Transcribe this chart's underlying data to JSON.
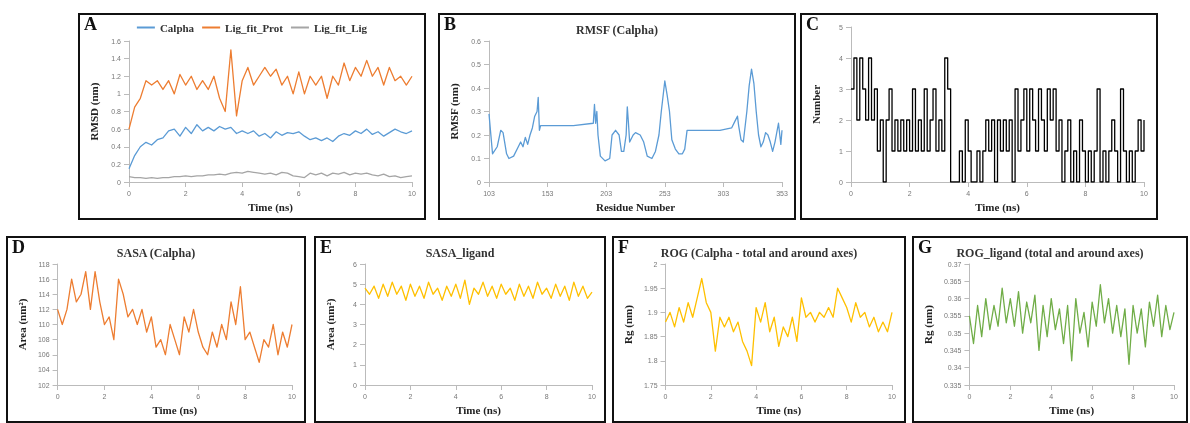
{
  "chart_data": [
    {
      "type": "line",
      "annotations": [
        "A"
      ],
      "xlabel": "Time (ns)",
      "ylabel": "RMSD (nm)",
      "xlim": [
        0,
        10
      ],
      "xticks": [
        0,
        2,
        4,
        6,
        8,
        10
      ],
      "ylim": [
        0,
        1.6
      ],
      "yticks": [
        0,
        0.2,
        0.4,
        0.6,
        0.8,
        1,
        1.2,
        1.4,
        1.6
      ],
      "grid": false,
      "legend": "top",
      "marker": "none",
      "x": [
        0,
        0.2,
        0.4,
        0.6,
        0.8,
        1,
        1.2,
        1.4,
        1.6,
        1.8,
        2,
        2.2,
        2.4,
        2.6,
        2.8,
        3,
        3.2,
        3.4,
        3.6,
        3.8,
        4,
        4.2,
        4.4,
        4.6,
        4.8,
        5,
        5.2,
        5.4,
        5.6,
        5.8,
        6,
        6.2,
        6.4,
        6.6,
        6.8,
        7,
        7.2,
        7.4,
        7.6,
        7.8,
        8,
        8.2,
        8.4,
        8.6,
        8.8,
        9,
        9.2,
        9.4,
        9.6,
        9.8,
        10
      ],
      "series": [
        {
          "name": "Calpha",
          "color": "#5b9bd5",
          "values": [
            0.15,
            0.3,
            0.4,
            0.45,
            0.42,
            0.48,
            0.5,
            0.58,
            0.6,
            0.52,
            0.62,
            0.55,
            0.65,
            0.58,
            0.62,
            0.58,
            0.63,
            0.6,
            0.62,
            0.55,
            0.58,
            0.55,
            0.58,
            0.52,
            0.55,
            0.5,
            0.57,
            0.53,
            0.56,
            0.55,
            0.57,
            0.52,
            0.48,
            0.5,
            0.47,
            0.5,
            0.46,
            0.52,
            0.55,
            0.53,
            0.58,
            0.55,
            0.6,
            0.54,
            0.57,
            0.52,
            0.56,
            0.6,
            0.57,
            0.55,
            0.58
          ]
        },
        {
          "name": "Lig_fit_Prot",
          "color": "#ed7d31",
          "values": [
            0.6,
            0.85,
            0.95,
            1.15,
            1.1,
            1.15,
            1.05,
            1.15,
            1.0,
            1.22,
            1.1,
            1.2,
            1.05,
            1.15,
            1.05,
            1.2,
            0.95,
            0.8,
            1.5,
            0.75,
            1.15,
            1.3,
            1.1,
            1.2,
            1.3,
            1.2,
            1.28,
            1.1,
            1.2,
            1.0,
            1.25,
            1.0,
            1.2,
            1.1,
            1.2,
            0.95,
            1.2,
            1.1,
            1.35,
            1.15,
            1.3,
            1.2,
            1.38,
            1.2,
            1.3,
            1.1,
            1.3,
            1.15,
            1.2,
            1.1,
            1.2
          ]
        },
        {
          "name": "Lig_fit_Lig",
          "color": "#a5a5a5",
          "values": [
            0.06,
            0.05,
            0.05,
            0.04,
            0.05,
            0.04,
            0.05,
            0.05,
            0.06,
            0.06,
            0.07,
            0.06,
            0.07,
            0.07,
            0.08,
            0.08,
            0.09,
            0.08,
            0.1,
            0.11,
            0.1,
            0.12,
            0.11,
            0.1,
            0.09,
            0.1,
            0.08,
            0.11,
            0.1,
            0.07,
            0.06,
            0.05,
            0.1,
            0.08,
            0.1,
            0.07,
            0.1,
            0.09,
            0.11,
            0.08,
            0.1,
            0.09,
            0.1,
            0.08,
            0.07,
            0.09,
            0.06,
            0.07,
            0.05,
            0.06,
            0.07
          ]
        }
      ]
    },
    {
      "type": "line",
      "title": "RMSF (Calpha)",
      "annotations": [
        "B"
      ],
      "xlabel": "Residue Number",
      "ylabel": "RMSF (nm)",
      "xlim": [
        103,
        353
      ],
      "xticks": [
        103,
        153,
        203,
        253,
        303,
        353
      ],
      "ylim": [
        0,
        0.6
      ],
      "yticks": [
        0,
        0.1,
        0.2,
        0.3,
        0.4,
        0.5,
        0.6
      ],
      "grid": false,
      "marker": "none",
      "color": "#5b9bd5",
      "x": [
        103,
        106,
        110,
        113,
        115,
        118,
        120,
        124,
        128,
        130,
        132,
        134,
        136,
        138,
        140,
        142,
        144,
        145,
        146,
        147,
        175,
        192,
        193,
        194,
        195,
        196,
        198,
        202,
        206,
        208,
        211,
        214,
        216,
        218,
        220,
        221,
        222,
        223,
        226,
        228,
        232,
        235,
        238,
        242,
        245,
        248,
        250,
        253,
        255,
        257,
        259,
        262,
        265,
        268,
        270,
        272,
        300,
        310,
        313,
        315,
        316,
        318,
        320,
        323,
        325,
        327,
        329,
        331,
        333,
        335,
        337,
        339,
        341,
        343,
        345,
        347,
        350,
        352,
        353
      ],
      "values": [
        0.29,
        0.12,
        0.15,
        0.22,
        0.21,
        0.12,
        0.1,
        0.11,
        0.15,
        0.17,
        0.15,
        0.19,
        0.16,
        0.2,
        0.23,
        0.28,
        0.3,
        0.36,
        0.22,
        0.24,
        0.24,
        0.25,
        0.33,
        0.25,
        0.3,
        0.2,
        0.11,
        0.09,
        0.1,
        0.2,
        0.22,
        0.2,
        0.13,
        0.13,
        0.2,
        0.32,
        0.25,
        0.17,
        0.2,
        0.21,
        0.2,
        0.17,
        0.11,
        0.1,
        0.13,
        0.2,
        0.3,
        0.43,
        0.37,
        0.3,
        0.18,
        0.14,
        0.12,
        0.12,
        0.14,
        0.22,
        0.22,
        0.23,
        0.26,
        0.28,
        0.24,
        0.18,
        0.17,
        0.3,
        0.41,
        0.48,
        0.42,
        0.3,
        0.2,
        0.15,
        0.17,
        0.21,
        0.2,
        0.17,
        0.13,
        0.17,
        0.25,
        0.16,
        0.22
      ]
    },
    {
      "type": "step",
      "annotations": [
        "C"
      ],
      "xlabel": "Time (ns)",
      "ylabel": "Number",
      "xlim": [
        0,
        10
      ],
      "xticks": [
        0,
        2,
        4,
        6,
        8,
        10
      ],
      "ylim": [
        0,
        5
      ],
      "yticks": [
        0,
        1,
        2,
        3,
        4,
        5
      ],
      "grid": false,
      "marker": "none",
      "color": "#000000",
      "x": [
        0,
        0.1,
        0.2,
        0.3,
        0.4,
        0.5,
        0.6,
        0.7,
        0.8,
        0.9,
        1,
        1.1,
        1.2,
        1.3,
        1.4,
        1.5,
        1.6,
        1.7,
        1.8,
        1.9,
        2,
        2.1,
        2.2,
        2.3,
        2.4,
        2.5,
        2.6,
        2.7,
        2.8,
        2.9,
        3,
        3.1,
        3.2,
        3.3,
        3.4,
        3.5,
        3.6,
        3.7,
        3.8,
        3.9,
        4,
        4.1,
        4.2,
        4.3,
        4.4,
        4.5,
        4.6,
        4.7,
        4.8,
        4.9,
        5,
        5.1,
        5.2,
        5.3,
        5.4,
        5.5,
        5.6,
        5.7,
        5.8,
        5.9,
        6,
        6.1,
        6.2,
        6.3,
        6.4,
        6.5,
        6.6,
        6.7,
        6.8,
        6.9,
        7,
        7.1,
        7.2,
        7.3,
        7.4,
        7.5,
        7.6,
        7.7,
        7.8,
        7.9,
        8,
        8.1,
        8.2,
        8.3,
        8.4,
        8.5,
        8.6,
        8.7,
        8.8,
        8.9,
        9,
        9.1,
        9.2,
        9.3,
        9.4,
        9.5,
        9.6,
        9.7,
        9.8,
        9.9,
        10
      ],
      "values": [
        3,
        4,
        2,
        4,
        3,
        2,
        4,
        2,
        3,
        1,
        2,
        0,
        2,
        3,
        1,
        2,
        1,
        2,
        1,
        2,
        1,
        3,
        1,
        2,
        1,
        3,
        1,
        2,
        3,
        1,
        2,
        1,
        4,
        3,
        0,
        0,
        0,
        1,
        0,
        2,
        1,
        0,
        0,
        1,
        0,
        1,
        2,
        1,
        2,
        0,
        2,
        1,
        2,
        1,
        2,
        0,
        3,
        1,
        2,
        3,
        1,
        3,
        2,
        1,
        3,
        2,
        1,
        3,
        2,
        3,
        1,
        2,
        0,
        1,
        2,
        0,
        1,
        0,
        2,
        1,
        0,
        1,
        0,
        1,
        3,
        0,
        1,
        0,
        1,
        2,
        1,
        0,
        3,
        1,
        0,
        1,
        0,
        1,
        2,
        1,
        2
      ]
    },
    {
      "type": "line",
      "title": "SASA (Calpha)",
      "annotations": [
        "D"
      ],
      "xlabel": "Time (ns)",
      "ylabel": "Area (nm²)",
      "xlim": [
        0,
        10
      ],
      "xticks": [
        0,
        2,
        4,
        6,
        8,
        10
      ],
      "ylim": [
        102,
        118
      ],
      "yticks": [
        102,
        104,
        106,
        108,
        110,
        112,
        114,
        116,
        118
      ],
      "grid": false,
      "marker": "none",
      "color": "#ed7d31",
      "x": [
        0,
        0.2,
        0.4,
        0.6,
        0.8,
        1,
        1.2,
        1.4,
        1.6,
        1.8,
        2,
        2.2,
        2.4,
        2.6,
        2.8,
        3,
        3.2,
        3.4,
        3.6,
        3.8,
        4,
        4.2,
        4.4,
        4.6,
        4.8,
        5,
        5.2,
        5.4,
        5.6,
        5.8,
        6,
        6.2,
        6.4,
        6.6,
        6.8,
        7,
        7.2,
        7.4,
        7.6,
        7.8,
        8,
        8.2,
        8.4,
        8.6,
        8.8,
        9,
        9.2,
        9.4,
        9.6,
        9.8,
        10
      ],
      "values": [
        112,
        110,
        112,
        116,
        113,
        114,
        117,
        112,
        117,
        113,
        110,
        111,
        108,
        116,
        114,
        111,
        112,
        110,
        112,
        109,
        111,
        107,
        108,
        106,
        110,
        108,
        106,
        111,
        109,
        112,
        109,
        107,
        106,
        109,
        107,
        110,
        108,
        113,
        110,
        115,
        108,
        109,
        107,
        105,
        108,
        107,
        110,
        106,
        109,
        107,
        110
      ]
    },
    {
      "type": "line",
      "title": "SASA_ligand",
      "annotations": [
        "E"
      ],
      "xlabel": "Time (ns)",
      "ylabel": "Area (nm²)",
      "xlim": [
        0,
        10
      ],
      "xticks": [
        0,
        2,
        4,
        6,
        8,
        10
      ],
      "ylim": [
        0,
        6
      ],
      "yticks": [
        0,
        1,
        2,
        3,
        4,
        5,
        6
      ],
      "grid": false,
      "marker": "none",
      "color": "#ffc000",
      "x": [
        0,
        0.2,
        0.4,
        0.6,
        0.8,
        1,
        1.2,
        1.4,
        1.6,
        1.8,
        2,
        2.2,
        2.4,
        2.6,
        2.8,
        3,
        3.2,
        3.4,
        3.6,
        3.8,
        4,
        4.2,
        4.4,
        4.6,
        4.8,
        5,
        5.2,
        5.4,
        5.6,
        5.8,
        6,
        6.2,
        6.4,
        6.6,
        6.8,
        7,
        7.2,
        7.4,
        7.6,
        7.8,
        8,
        8.2,
        8.4,
        8.6,
        8.8,
        9,
        9.2,
        9.4,
        9.6,
        9.8,
        10
      ],
      "values": [
        4.8,
        4.5,
        4.9,
        4.3,
        5.0,
        4.4,
        5.1,
        4.5,
        4.9,
        4.2,
        5.0,
        4.4,
        4.9,
        4.3,
        5.1,
        4.5,
        4.8,
        4.2,
        4.9,
        4.4,
        5.0,
        4.3,
        5.2,
        4.0,
        4.8,
        4.5,
        5.1,
        4.4,
        4.9,
        4.3,
        5.0,
        4.5,
        4.8,
        4.2,
        5.0,
        4.4,
        4.9,
        4.3,
        5.1,
        4.5,
        4.8,
        4.3,
        5.0,
        4.4,
        4.9,
        4.2,
        5.1,
        4.4,
        4.9,
        4.3,
        4.6
      ]
    },
    {
      "type": "line",
      "title": "ROG (Calpha - total and around axes)",
      "annotations": [
        "F"
      ],
      "xlabel": "Time (ns)",
      "ylabel": "Rg (nm)",
      "xlim": [
        0,
        10
      ],
      "xticks": [
        0,
        2,
        4,
        6,
        8,
        10
      ],
      "ylim": [
        1.75,
        2
      ],
      "yticks": [
        1.75,
        1.8,
        1.85,
        1.9,
        1.95,
        2
      ],
      "grid": false,
      "marker": "none",
      "color": "#ffc000",
      "x": [
        0,
        0.2,
        0.4,
        0.6,
        0.8,
        1,
        1.2,
        1.4,
        1.6,
        1.8,
        2,
        2.2,
        2.4,
        2.6,
        2.8,
        3,
        3.2,
        3.4,
        3.6,
        3.8,
        4,
        4.2,
        4.4,
        4.6,
        4.8,
        5,
        5.2,
        5.4,
        5.6,
        5.8,
        6,
        6.2,
        6.4,
        6.6,
        6.8,
        7,
        7.2,
        7.4,
        7.6,
        7.8,
        8,
        8.2,
        8.4,
        8.6,
        8.8,
        9,
        9.2,
        9.4,
        9.6,
        9.8,
        10
      ],
      "values": [
        1.88,
        1.9,
        1.87,
        1.91,
        1.88,
        1.92,
        1.89,
        1.93,
        1.97,
        1.92,
        1.9,
        1.82,
        1.89,
        1.87,
        1.89,
        1.86,
        1.88,
        1.84,
        1.82,
        1.79,
        1.91,
        1.88,
        1.92,
        1.86,
        1.89,
        1.83,
        1.87,
        1.85,
        1.89,
        1.84,
        1.93,
        1.89,
        1.9,
        1.88,
        1.9,
        1.89,
        1.91,
        1.89,
        1.95,
        1.93,
        1.91,
        1.88,
        1.92,
        1.89,
        1.9,
        1.87,
        1.89,
        1.86,
        1.88,
        1.86,
        1.9
      ]
    },
    {
      "type": "line",
      "title": "ROG_ligand (total and around axes)",
      "annotations": [
        "G"
      ],
      "xlabel": "Time (ns)",
      "ylabel": "Rg (nm)",
      "xlim": [
        0,
        10
      ],
      "xticks": [
        0,
        2,
        4,
        6,
        8,
        10
      ],
      "ylim": [
        0.335,
        0.37
      ],
      "yticks": [
        0.335,
        0.34,
        0.345,
        0.35,
        0.355,
        0.36,
        0.365,
        0.37
      ],
      "grid": false,
      "marker": "none",
      "color": "#70ad47",
      "x": [
        0,
        0.2,
        0.4,
        0.6,
        0.8,
        1,
        1.2,
        1.4,
        1.6,
        1.8,
        2,
        2.2,
        2.4,
        2.6,
        2.8,
        3,
        3.2,
        3.4,
        3.6,
        3.8,
        4,
        4.2,
        4.4,
        4.6,
        4.8,
        5,
        5.2,
        5.4,
        5.6,
        5.8,
        6,
        6.2,
        6.4,
        6.6,
        6.8,
        7,
        7.2,
        7.4,
        7.6,
        7.8,
        8,
        8.2,
        8.4,
        8.6,
        8.8,
        9,
        9.2,
        9.4,
        9.6,
        9.8,
        10
      ],
      "values": [
        0.355,
        0.347,
        0.358,
        0.349,
        0.36,
        0.351,
        0.358,
        0.352,
        0.363,
        0.353,
        0.36,
        0.352,
        0.362,
        0.35,
        0.359,
        0.353,
        0.361,
        0.345,
        0.358,
        0.349,
        0.36,
        0.351,
        0.357,
        0.347,
        0.358,
        0.342,
        0.36,
        0.35,
        0.356,
        0.346,
        0.359,
        0.352,
        0.364,
        0.353,
        0.36,
        0.35,
        0.358,
        0.349,
        0.357,
        0.341,
        0.358,
        0.35,
        0.357,
        0.346,
        0.359,
        0.352,
        0.361,
        0.349,
        0.358,
        0.351,
        0.356
      ]
    }
  ]
}
